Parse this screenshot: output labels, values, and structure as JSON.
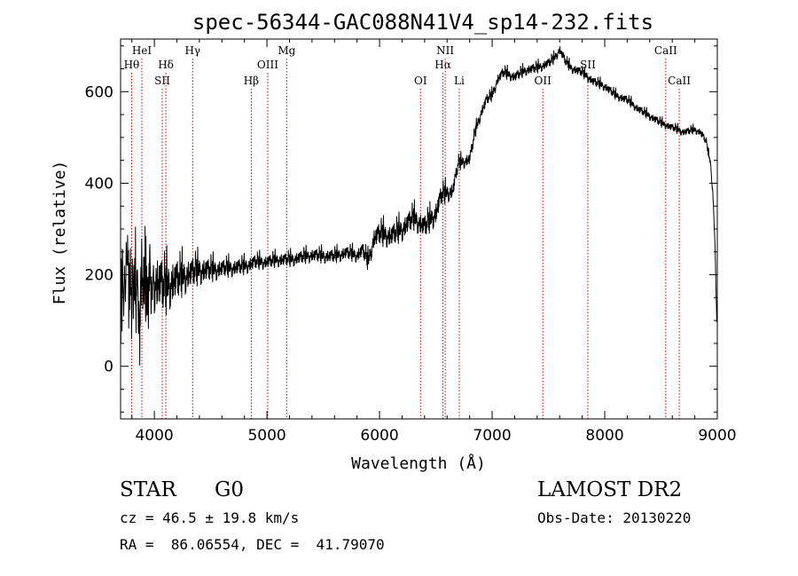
{
  "chart_data": {
    "type": "line",
    "title": "spec-56344-GAC088N41V4_sp14-232.fits",
    "xlabel": "Wavelength (Å)",
    "ylabel": "Flux (relative)",
    "xlim": [
      3700,
      9000
    ],
    "ylim": [
      -115,
      715
    ],
    "xticks": [
      4000,
      5000,
      6000,
      7000,
      8000,
      9000
    ],
    "yticks": [
      0,
      200,
      400,
      600
    ],
    "grid": false,
    "line_color": "#000000",
    "marker_color": "#cc0000",
    "spectrum_knots": [
      [
        3700,
        170
      ],
      [
        3750,
        200
      ],
      [
        3800,
        180
      ],
      [
        3850,
        150
      ],
      [
        3900,
        170
      ],
      [
        3950,
        175
      ],
      [
        4000,
        175
      ],
      [
        4050,
        170
      ],
      [
        4100,
        160
      ],
      [
        4150,
        175
      ],
      [
        4200,
        180
      ],
      [
        4300,
        195
      ],
      [
        4400,
        205
      ],
      [
        4500,
        205
      ],
      [
        4600,
        210
      ],
      [
        4700,
        212
      ],
      [
        4800,
        215
      ],
      [
        4900,
        225
      ],
      [
        5000,
        225
      ],
      [
        5100,
        230
      ],
      [
        5200,
        230
      ],
      [
        5300,
        235
      ],
      [
        5400,
        240
      ],
      [
        5500,
        238
      ],
      [
        5600,
        238
      ],
      [
        5700,
        245
      ],
      [
        5800,
        240
      ],
      [
        5850,
        250
      ],
      [
        5900,
        225
      ],
      [
        5950,
        275
      ],
      [
        6000,
        285
      ],
      [
        6100,
        280
      ],
      [
        6200,
        295
      ],
      [
        6300,
        320
      ],
      [
        6400,
        300
      ],
      [
        6500,
        330
      ],
      [
        6550,
        370
      ],
      [
        6600,
        375
      ],
      [
        6650,
        380
      ],
      [
        6700,
        440
      ],
      [
        6800,
        450
      ],
      [
        6850,
        510
      ],
      [
        6900,
        550
      ],
      [
        6950,
        580
      ],
      [
        7000,
        590
      ],
      [
        7050,
        625
      ],
      [
        7100,
        640
      ],
      [
        7200,
        630
      ],
      [
        7300,
        645
      ],
      [
        7400,
        650
      ],
      [
        7500,
        660
      ],
      [
        7550,
        670
      ],
      [
        7600,
        690
      ],
      [
        7650,
        665
      ],
      [
        7700,
        650
      ],
      [
        7800,
        640
      ],
      [
        7900,
        620
      ],
      [
        8000,
        610
      ],
      [
        8100,
        590
      ],
      [
        8200,
        580
      ],
      [
        8300,
        560
      ],
      [
        8400,
        545
      ],
      [
        8500,
        530
      ],
      [
        8600,
        520
      ],
      [
        8700,
        510
      ],
      [
        8800,
        515
      ],
      [
        8850,
        510
      ],
      [
        8900,
        490
      ],
      [
        8940,
        440
      ],
      [
        8960,
        380
      ],
      [
        8980,
        260
      ],
      [
        8995,
        100
      ]
    ],
    "noise_scale": [
      [
        3700,
        85
      ],
      [
        3900,
        75
      ],
      [
        4100,
        55
      ],
      [
        4300,
        35
      ],
      [
        4600,
        20
      ],
      [
        5000,
        15
      ],
      [
        5800,
        15
      ],
      [
        6000,
        25
      ],
      [
        6500,
        25
      ],
      [
        6700,
        15
      ],
      [
        7000,
        12
      ],
      [
        8000,
        10
      ],
      [
        9000,
        8
      ]
    ],
    "line_markers": [
      {
        "label": "Hθ",
        "wavelength": 3798,
        "row": 2
      },
      {
        "label": "HeI",
        "wavelength": 3889,
        "row": 1
      },
      {
        "label": "Hδ",
        "wavelength": 4102,
        "row": 2
      },
      {
        "label": "SII",
        "wavelength": 4070,
        "row": 3
      },
      {
        "label": "Hγ",
        "wavelength": 4340,
        "row": 1
      },
      {
        "label": "Hβ",
        "wavelength": 4861,
        "row": 3
      },
      {
        "label": "OIII",
        "wavelength": 5007,
        "row": 2
      },
      {
        "label": "Mg",
        "wavelength": 5175,
        "row": 1
      },
      {
        "label": "OI",
        "wavelength": 6364,
        "row": 3
      },
      {
        "label": "NII",
        "wavelength": 6583,
        "row": 1
      },
      {
        "label": "Hα",
        "wavelength": 6563,
        "row": 2
      },
      {
        "label": "Li",
        "wavelength": 6708,
        "row": 3
      },
      {
        "label": "OII",
        "wavelength": 7450,
        "row": 3
      },
      {
        "label": "SII",
        "wavelength": 7850,
        "row": 2
      },
      {
        "label": "CaII",
        "wavelength": 8542,
        "row": 1
      },
      {
        "label": "CaII",
        "wavelength": 8662,
        "row": 3
      }
    ]
  },
  "info": {
    "object_class": "STAR",
    "subclass": "G0",
    "survey": "LAMOST DR2",
    "cz": "cz = 46.5 ± 19.8 km/s",
    "obs_date": "Obs-Date: 20130220",
    "coords": "RA =  86.06554, DEC =  41.79070"
  }
}
